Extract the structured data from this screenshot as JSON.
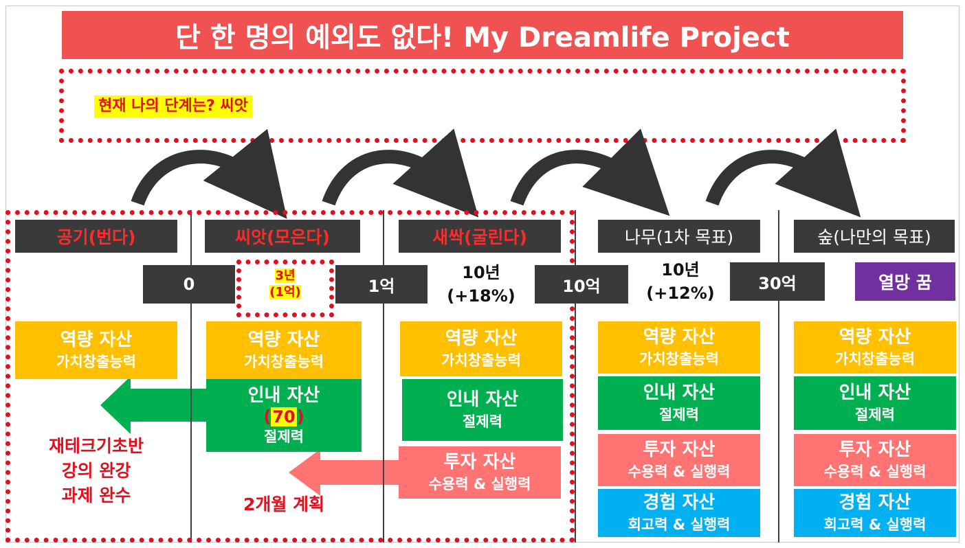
{
  "title": "단 한 명의 예외도 없다! My Dreamlife Project",
  "current_stage_text": "현재 나의 단계는? 씨앗",
  "stages": [
    {
      "label": "공기(번다)"
    },
    {
      "label": "씨앗(모은다)"
    },
    {
      "label": "새싹(굴린다)"
    },
    {
      "label": "나무(1차 목표)"
    },
    {
      "label": "숲(나만의 목표)"
    }
  ],
  "amounts": [
    "0",
    "1억",
    "10억",
    "30억"
  ],
  "periods": {
    "seed": [
      "3년",
      "(1억)"
    ],
    "sprout": [
      "10년",
      "(+18%)"
    ],
    "tree": [
      "10년",
      "(+12%)"
    ]
  },
  "dream": "열망 꿈",
  "assets": {
    "capability": {
      "title": "역량 자산",
      "sub": "가치창출능력"
    },
    "patience": {
      "title": "인내 자산",
      "number": "70",
      "sub": "절제력"
    },
    "investment": {
      "title": "투자 자산",
      "sub": "수용력 & 실행력"
    },
    "experience": {
      "title": "경험 자산",
      "sub": "회고력 & 실행력"
    }
  },
  "actions": {
    "lines": [
      "재테크기초반",
      "강의 완강",
      "과제 완수"
    ],
    "plan": "2개월 계획"
  },
  "colors": {
    "title_bg": "#f05252",
    "dotted_red": "#e0101e",
    "dark_box": "#3a3a3a",
    "capability": "#ffc000",
    "patience": "#00b050",
    "investment": "#ff7373",
    "experience": "#00b0f0",
    "dream": "#7030a0",
    "highlight": "#ffff00"
  }
}
